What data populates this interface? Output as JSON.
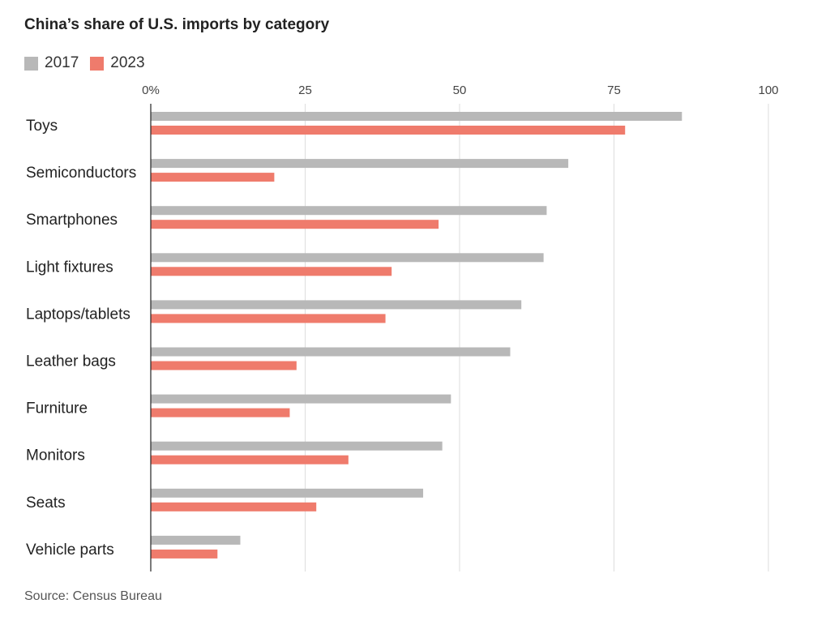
{
  "title": "China’s share of U.S. imports by category",
  "source": "Source: Census Bureau",
  "colors": {
    "series_2017": "#b8b8b8",
    "series_2023": "#ef7b6c",
    "grid": "#dddddd",
    "axis": "#222222"
  },
  "chart_data": {
    "type": "bar",
    "orientation": "horizontal",
    "title": "China’s share of U.S. imports by category",
    "xlabel": "",
    "ylabel": "",
    "xlim": [
      0,
      100
    ],
    "ticks": [
      0,
      25,
      50,
      75,
      100
    ],
    "tick_labels": [
      "0%",
      "25",
      "50",
      "75",
      "100"
    ],
    "grid": true,
    "legend_position": "top-left",
    "categories": [
      "Toys",
      "Semiconductors",
      "Smartphones",
      "Light fixtures",
      "Laptops/tablets",
      "Leather bags",
      "Furniture",
      "Monitors",
      "Seats",
      "Vehicle parts"
    ],
    "series": [
      {
        "name": "2017",
        "color": "#b8b8b8",
        "values": [
          86,
          67.6,
          64.1,
          63.6,
          60,
          58.2,
          48.6,
          47.2,
          44.1,
          14.5
        ]
      },
      {
        "name": "2023",
        "color": "#ef7b6c",
        "values": [
          76.8,
          20,
          46.6,
          39,
          38,
          23.6,
          22.5,
          32,
          26.8,
          10.8
        ]
      }
    ]
  }
}
